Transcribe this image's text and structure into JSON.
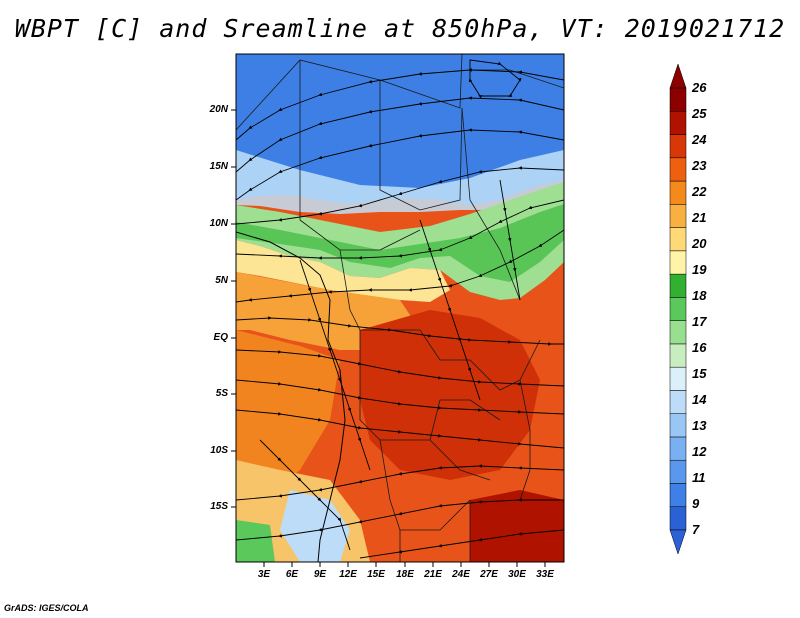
{
  "title": "WBPT [C] and Sreamline at 850hPa, VT: 2019021712",
  "credit": "GrADS: IGES/COLA",
  "axes": {
    "y_ticks": [
      "20N",
      "15N",
      "10N",
      "5N",
      "EQ",
      "5S",
      "10S",
      "15S"
    ],
    "x_ticks": [
      "3E",
      "6E",
      "9E",
      "12E",
      "15E",
      "18E",
      "21E",
      "24E",
      "27E",
      "30E",
      "33E"
    ]
  },
  "colorbar": {
    "levels": [
      "7",
      "9",
      "11",
      "12",
      "13",
      "14",
      "15",
      "16",
      "17",
      "18",
      "19",
      "20",
      "21",
      "22",
      "23",
      "24",
      "25",
      "26"
    ],
    "colors": [
      "#2a62d6",
      "#3f80e6",
      "#5a98ee",
      "#78b0f2",
      "#9ac6f5",
      "#bcdcf8",
      "#dcf0fa",
      "#c8eec0",
      "#98e090",
      "#5ac85a",
      "#32b032",
      "#fff4a8",
      "#ffd878",
      "#f8b040",
      "#f48a1c",
      "#ec6010",
      "#d83808",
      "#b01200",
      "#8c0000"
    ]
  }
}
